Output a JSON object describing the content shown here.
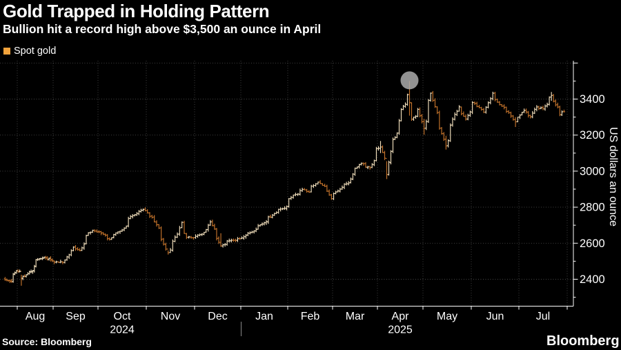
{
  "header": {
    "title": "Gold Trapped in Holding Pattern",
    "subtitle": "Bullion hit a record high above $3,500 an ounce in April"
  },
  "legend": {
    "label": "Spot gold",
    "swatch_color": "#F2A33C"
  },
  "footer": {
    "source": "Source: Bloomberg",
    "brand": "Bloomberg"
  },
  "chart_data": {
    "type": "ohlc",
    "title": "Gold Trapped in Holding Pattern",
    "series_name": "Spot gold",
    "ylabel": "US dollars an ounce",
    "y_axis": {
      "min": 2251,
      "max": 3611,
      "labeled_ticks": [
        2400,
        2600,
        2800,
        3000,
        3200,
        3400
      ],
      "minor_tick_step": 100,
      "grid_step": 200,
      "grid_style": "dotted"
    },
    "x_axis": {
      "start": "2024-07-22",
      "end": "2025-07-30",
      "month_labels": [
        "Aug",
        "Sep",
        "Oct",
        "Nov",
        "Dec",
        "Jan",
        "Feb",
        "Mar",
        "Apr",
        "May",
        "Jun",
        "Jul"
      ],
      "year_labels": [
        {
          "text": "2024",
          "under_month_index": 2
        },
        {
          "text": "2025",
          "under_month_index": 8
        }
      ],
      "year_divider_after": "Dec"
    },
    "annotation": {
      "shape": "circle",
      "date": "2025-04-22",
      "value": 3500,
      "meaning": "record high above $3,500"
    },
    "colors": {
      "up_bar": "#F3E0BD",
      "down_bar": "#C4732B",
      "grid": "#FFFFFF",
      "axis": "#FFFFFF",
      "annotation_fill": "#ABABAB",
      "background": "#000000"
    },
    "close_anchors": [
      [
        "2024-07-22",
        2398
      ],
      [
        "2024-07-26",
        2387
      ],
      [
        "2024-07-31",
        2448
      ],
      [
        "2024-08-02",
        2443
      ],
      [
        "2024-08-05",
        2407,
        2425,
        2364
      ],
      [
        "2024-08-09",
        2431
      ],
      [
        "2024-08-14",
        2448
      ],
      [
        "2024-08-16",
        2508
      ],
      [
        "2024-08-20",
        2514
      ],
      [
        "2024-08-26",
        2518
      ],
      [
        "2024-08-30",
        2503
      ],
      [
        "2024-09-04",
        2494
      ],
      [
        "2024-09-09",
        2506
      ],
      [
        "2024-09-13",
        2578
      ],
      [
        "2024-09-18",
        2559
      ],
      [
        "2024-09-24",
        2657
      ],
      [
        "2024-09-26",
        2672
      ],
      [
        "2024-10-01",
        2663
      ],
      [
        "2024-10-08",
        2621
      ],
      [
        "2024-10-11",
        2657
      ],
      [
        "2024-10-16",
        2673
      ],
      [
        "2024-10-22",
        2749
      ],
      [
        "2024-10-30",
        2787
      ],
      [
        "2024-11-05",
        2743
      ],
      [
        "2024-11-08",
        2684
      ],
      [
        "2024-11-14",
        2547,
        2560,
        2537
      ],
      [
        "2024-11-20",
        2650
      ],
      [
        "2024-11-22",
        2716
      ],
      [
        "2024-11-26",
        2633
      ],
      [
        "2024-12-02",
        2639
      ],
      [
        "2024-12-09",
        2676
      ],
      [
        "2024-12-11",
        2718
      ],
      [
        "2024-12-18",
        2585,
        2655,
        2580
      ],
      [
        "2024-12-23",
        2613
      ],
      [
        "2024-12-31",
        2625
      ],
      [
        "2025-01-08",
        2662
      ],
      [
        "2025-01-16",
        2714
      ],
      [
        "2025-01-24",
        2771
      ],
      [
        "2025-01-30",
        2794
      ],
      [
        "2025-02-05",
        2867
      ],
      [
        "2025-02-11",
        2898
      ],
      [
        "2025-02-14",
        2883
      ],
      [
        "2025-02-20",
        2939
      ],
      [
        "2025-02-25",
        2915
      ],
      [
        "2025-02-28",
        2848
      ],
      [
        "2025-03-07",
        2910
      ],
      [
        "2025-03-12",
        2934
      ],
      [
        "2025-03-14",
        2984
      ],
      [
        "2025-03-20",
        3044
      ],
      [
        "2025-03-26",
        3019
      ],
      [
        "2025-03-31",
        3124
      ],
      [
        "2025-04-02",
        3134,
        3167,
        3100
      ],
      [
        "2025-04-07",
        2982,
        3055,
        2956
      ],
      [
        "2025-04-10",
        3176
      ],
      [
        "2025-04-14",
        3211
      ],
      [
        "2025-04-16",
        3343
      ],
      [
        "2025-04-21",
        3424
      ],
      [
        "2025-04-22",
        3381,
        3500,
        3308
      ],
      [
        "2025-04-23",
        3288
      ],
      [
        "2025-04-28",
        3343
      ],
      [
        "2025-05-01",
        3237,
        3290,
        3202
      ],
      [
        "2025-05-06",
        3432
      ],
      [
        "2025-05-09",
        3325
      ],
      [
        "2025-05-14",
        3177
      ],
      [
        "2025-05-15",
        3140,
        3196,
        3120
      ],
      [
        "2025-05-21",
        3315
      ],
      [
        "2025-05-23",
        3357
      ],
      [
        "2025-05-28",
        3289
      ],
      [
        "2025-06-02",
        3381
      ],
      [
        "2025-06-05",
        3353
      ],
      [
        "2025-06-09",
        3326
      ],
      [
        "2025-06-13",
        3432
      ],
      [
        "2025-06-18",
        3369
      ],
      [
        "2025-06-24",
        3324
      ],
      [
        "2025-06-27",
        3274,
        3300,
        3245
      ],
      [
        "2025-07-03",
        3336
      ],
      [
        "2025-07-08",
        3301
      ],
      [
        "2025-07-11",
        3356
      ],
      [
        "2025-07-16",
        3347
      ],
      [
        "2025-07-22",
        3420,
        3439,
        3390
      ],
      [
        "2025-07-24",
        3368
      ],
      [
        "2025-07-28",
        3314
      ],
      [
        "2025-07-30",
        3330
      ]
    ]
  }
}
